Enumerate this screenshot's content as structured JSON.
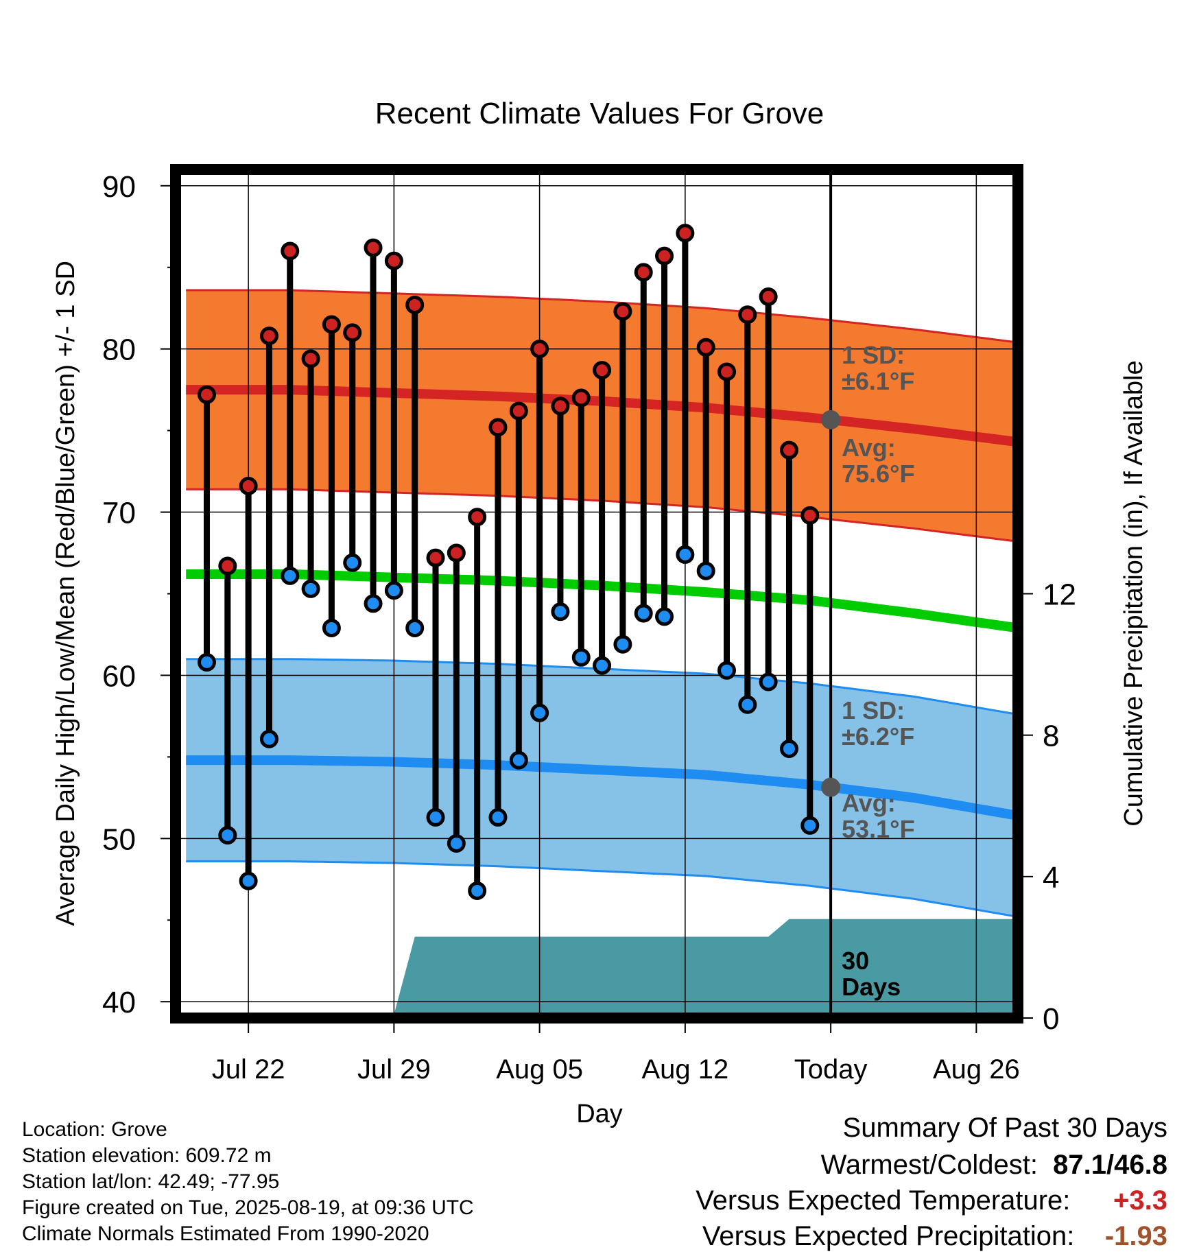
{
  "info": {
    "location": "Location: Grove",
    "elevation": "Station elevation: 609.72 m",
    "latlon": "Station lat/lon: 42.49; -77.95",
    "created": "Figure created on Tue, 2025-08-19, at 09:36 UTC",
    "normals": "Climate Normals Estimated From 1990-2020"
  },
  "summary": {
    "title": "Summary Of Past 30 Days",
    "warm_cold_label": "Warmest/Coldest:",
    "warm_cold_value": "87.1/46.8",
    "temp_label": "Versus Expected Temperature:",
    "temp_value": "+3.3",
    "precip_label": "Versus Expected Precipitation:",
    "precip_value": "-1.93",
    "colors": {
      "temp": "#cc2222",
      "precip": "#a0522d"
    }
  },
  "chart_data": {
    "type": "line",
    "title": "Recent Climate Values For Grove",
    "xlabel": "Day",
    "ylabel": "Average Daily High/Low/Mean (Red/Blue/Green) +/- 1 SD",
    "y2label": "Cumulative Precipitation (in), If Available",
    "ylim": [
      39,
      91
    ],
    "y_ticks": [
      40,
      50,
      60,
      70,
      80,
      90
    ],
    "y2lim": [
      0,
      24
    ],
    "y2_ticks": [
      0,
      4,
      8,
      12
    ],
    "x_tick_labels": [
      "Jul 22",
      "Jul 29",
      "Aug 05",
      "Aug 12",
      "Today",
      "Aug 26"
    ],
    "x_tick_days": [
      3,
      10,
      17,
      24,
      31,
      38
    ],
    "xlim": [
      -0.5,
      40
    ],
    "today_day": 31,
    "grid": true,
    "days": [
      1,
      2,
      3,
      4,
      5,
      6,
      7,
      8,
      9,
      10,
      11,
      12,
      13,
      14,
      15,
      16,
      17,
      18,
      19,
      20,
      21,
      22,
      23,
      24,
      25,
      26,
      27,
      28,
      29,
      30
    ],
    "daily_high": [
      77.2,
      66.7,
      71.6,
      80.8,
      86.0,
      79.4,
      81.5,
      81.0,
      86.2,
      85.4,
      82.7,
      67.2,
      67.5,
      69.7,
      75.2,
      76.2,
      80.0,
      76.5,
      77.0,
      78.7,
      82.3,
      84.7,
      85.7,
      87.1,
      80.1,
      78.6,
      82.1,
      83.2,
      73.8,
      69.8
    ],
    "daily_low": [
      60.8,
      50.2,
      47.4,
      56.1,
      66.1,
      65.3,
      62.9,
      66.9,
      64.4,
      65.2,
      62.9,
      51.3,
      49.7,
      46.8,
      51.3,
      54.8,
      57.7,
      63.9,
      61.1,
      60.6,
      61.9,
      63.8,
      63.6,
      67.4,
      66.4,
      60.3,
      58.2,
      59.6,
      55.5,
      50.8
    ],
    "normal_high": {
      "days": [
        0,
        5,
        10,
        15,
        20,
        25,
        30,
        35,
        40
      ],
      "values": [
        77.5,
        77.5,
        77.3,
        77.1,
        76.8,
        76.4,
        75.8,
        75.1,
        74.3
      ]
    },
    "normal_low": {
      "days": [
        0,
        5,
        10,
        15,
        20,
        25,
        30,
        35,
        40
      ],
      "values": [
        54.8,
        54.8,
        54.7,
        54.5,
        54.2,
        53.9,
        53.3,
        52.5,
        51.4
      ]
    },
    "normal_mean": {
      "days": [
        0,
        5,
        10,
        15,
        20,
        25,
        30,
        35,
        40
      ],
      "values": [
        66.2,
        66.2,
        66.0,
        65.8,
        65.5,
        65.1,
        64.6,
        63.8,
        62.9
      ]
    },
    "sd_high": 6.1,
    "sd_low": 6.2,
    "precip_cumulative": {
      "days": [
        0,
        7,
        10,
        11,
        24.5,
        28,
        29,
        40
      ],
      "values": [
        0,
        0,
        0.1,
        2.3,
        2.3,
        2.3,
        2.8,
        2.8
      ]
    },
    "annotations": {
      "high_sd": [
        "1 SD:",
        "±6.1°F"
      ],
      "high_avg": [
        "Avg:",
        "75.6°F"
      ],
      "low_sd": [
        "1 SD:",
        "±6.2°F"
      ],
      "low_avg": [
        "Avg:",
        "53.1°F"
      ],
      "precip": [
        "30",
        "Days"
      ]
    },
    "colors": {
      "high_band": "#f47a30",
      "high_line": "#d42424",
      "low_band": "#86c1e8",
      "low_line": "#1e8cf0",
      "mean_line": "#00cc00",
      "precip": "#4a9aa4",
      "high_dot": "#cc2222",
      "low_dot": "#1e8cf0",
      "avg_dot": "#555555",
      "annotation_text": "#555555"
    }
  }
}
